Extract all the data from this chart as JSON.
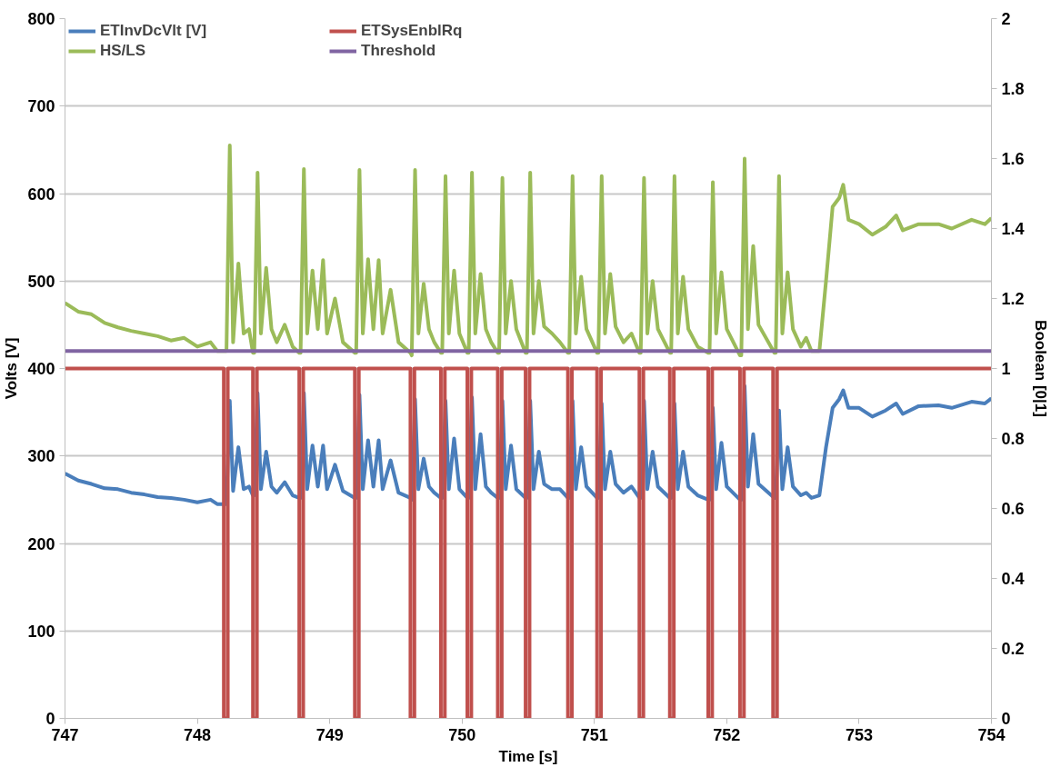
{
  "chart_data": {
    "type": "line",
    "xlabel": "Time [s]",
    "ylabel": "Volts [V]",
    "y2label": "Boolean [0|1]",
    "xlim": [
      747,
      754
    ],
    "xticks": [
      747,
      748,
      749,
      750,
      751,
      752,
      753,
      754
    ],
    "ylim": [
      0,
      800
    ],
    "yticks": [
      0,
      100,
      200,
      300,
      400,
      500,
      600,
      700,
      800
    ],
    "y2lim": [
      0,
      2
    ],
    "y2ticks": [
      0,
      0.2,
      0.4,
      0.6,
      0.8,
      1,
      1.2,
      1.4,
      1.6,
      1.8,
      2
    ],
    "grid": "y",
    "legend": "top left",
    "marker": "none",
    "line_style": "solid",
    "x": [
      747.0,
      747.1,
      747.2,
      747.3,
      747.4,
      747.5,
      747.6,
      747.7,
      747.8,
      747.9,
      748.0,
      748.1,
      748.15,
      748.22,
      748.245,
      748.27,
      748.31,
      748.35,
      748.39,
      748.42,
      748.43,
      748.455,
      748.48,
      748.52,
      748.56,
      748.6,
      748.66,
      748.72,
      748.77,
      748.78,
      748.805,
      748.83,
      748.87,
      748.91,
      748.95,
      748.98,
      749.04,
      749.1,
      749.19,
      749.2,
      749.225,
      749.25,
      749.29,
      749.33,
      749.37,
      749.4,
      749.46,
      749.52,
      749.61,
      749.62,
      749.645,
      749.67,
      749.71,
      749.75,
      749.79,
      749.84,
      749.85,
      749.875,
      749.9,
      749.94,
      749.98,
      750.04,
      750.05,
      750.075,
      750.1,
      750.14,
      750.18,
      750.22,
      750.27,
      750.28,
      750.305,
      750.33,
      750.37,
      750.41,
      750.48,
      750.49,
      750.515,
      750.54,
      750.58,
      750.62,
      750.68,
      750.74,
      750.8,
      750.81,
      750.835,
      750.86,
      750.9,
      750.94,
      751.02,
      751.03,
      751.055,
      751.08,
      751.12,
      751.16,
      751.22,
      751.28,
      751.34,
      751.35,
      751.375,
      751.4,
      751.44,
      751.48,
      751.57,
      751.58,
      751.605,
      751.63,
      751.67,
      751.71,
      751.78,
      751.86,
      751.87,
      751.895,
      751.92,
      751.96,
      752.0,
      752.1,
      752.11,
      752.135,
      752.16,
      752.2,
      752.24,
      752.36,
      752.37,
      752.395,
      752.42,
      752.46,
      752.5,
      752.56,
      752.6,
      752.64,
      752.7,
      752.75,
      752.8,
      752.85,
      752.88,
      752.92,
      753.0,
      753.1,
      753.2,
      753.28,
      753.33,
      753.45,
      753.6,
      753.7,
      753.85,
      753.95,
      754.0
    ],
    "series": [
      {
        "name": "ETInvDcVlt [V]",
        "color": "#4a7ebb",
        "values": [
          280,
          272,
          268,
          263,
          262,
          258,
          256,
          253,
          252,
          250,
          247,
          250,
          245,
          245,
          363,
          260,
          310,
          262,
          265,
          255,
          255,
          372,
          262,
          305,
          265,
          258,
          270,
          255,
          252,
          252,
          372,
          262,
          312,
          265,
          312,
          262,
          290,
          260,
          252,
          252,
          370,
          262,
          318,
          265,
          318,
          262,
          295,
          258,
          252,
          250,
          365,
          262,
          297,
          265,
          258,
          252,
          252,
          363,
          262,
          320,
          262,
          252,
          252,
          367,
          262,
          325,
          265,
          258,
          252,
          252,
          363,
          262,
          312,
          262,
          252,
          252,
          363,
          262,
          305,
          268,
          262,
          262,
          252,
          252,
          363,
          262,
          310,
          265,
          252,
          252,
          360,
          262,
          305,
          268,
          258,
          265,
          252,
          252,
          363,
          262,
          305,
          265,
          252,
          252,
          360,
          262,
          305,
          265,
          255,
          250,
          250,
          355,
          262,
          315,
          265,
          250,
          250,
          380,
          265,
          325,
          268,
          252,
          252,
          352,
          262,
          310,
          265,
          255,
          258,
          252,
          255,
          310,
          355,
          365,
          375,
          355,
          355,
          345,
          352,
          360,
          348,
          357,
          358,
          355,
          362,
          360,
          366
        ]
      },
      {
        "name": "HS/LS",
        "color": "#9bbb59",
        "values": [
          475,
          465,
          462,
          452,
          447,
          443,
          440,
          437,
          432,
          435,
          425,
          430,
          420,
          420,
          655,
          430,
          520,
          440,
          445,
          418,
          418,
          624,
          440,
          515,
          445,
          430,
          450,
          425,
          418,
          418,
          628,
          440,
          512,
          445,
          524,
          440,
          480,
          430,
          418,
          418,
          627,
          440,
          525,
          445,
          524,
          440,
          490,
          430,
          418,
          415,
          627,
          440,
          497,
          445,
          430,
          418,
          418,
          620,
          440,
          512,
          440,
          418,
          418,
          624,
          440,
          508,
          445,
          430,
          418,
          418,
          618,
          440,
          500,
          445,
          418,
          418,
          624,
          440,
          500,
          448,
          440,
          430,
          418,
          418,
          620,
          440,
          505,
          445,
          418,
          418,
          620,
          440,
          508,
          448,
          430,
          440,
          418,
          418,
          618,
          440,
          500,
          445,
          418,
          418,
          620,
          440,
          505,
          445,
          425,
          418,
          418,
          613,
          440,
          510,
          445,
          415,
          415,
          640,
          445,
          540,
          450,
          418,
          418,
          620,
          440,
          510,
          445,
          425,
          435,
          420,
          420,
          500,
          585,
          595,
          610,
          570,
          565,
          553,
          562,
          575,
          558,
          565,
          565,
          560,
          570,
          565,
          572
        ]
      },
      {
        "name": "ETSysEnblRq",
        "color": "#c0504d",
        "axis": "y2",
        "x": [
          747,
          748.2,
          748.2,
          748.23,
          748.23,
          748.42,
          748.42,
          748.45,
          748.45,
          748.77,
          748.77,
          748.8,
          748.8,
          749.19,
          749.19,
          749.22,
          749.22,
          749.61,
          749.61,
          749.64,
          749.64,
          749.84,
          749.84,
          749.87,
          749.87,
          750.04,
          750.04,
          750.07,
          750.07,
          750.27,
          750.27,
          750.3,
          750.3,
          750.48,
          750.48,
          750.51,
          750.51,
          750.8,
          750.8,
          750.83,
          750.83,
          751.02,
          751.02,
          751.05,
          751.05,
          751.34,
          751.34,
          751.37,
          751.37,
          751.57,
          751.57,
          751.6,
          751.6,
          751.86,
          751.86,
          751.89,
          751.89,
          752.1,
          752.1,
          752.13,
          752.13,
          752.35,
          752.35,
          752.38,
          752.38,
          754
        ],
        "values": [
          1,
          1,
          0,
          0,
          1,
          1,
          0,
          0,
          1,
          1,
          0,
          0,
          1,
          1,
          0,
          0,
          1,
          1,
          0,
          0,
          1,
          1,
          0,
          0,
          1,
          1,
          0,
          0,
          1,
          1,
          0,
          0,
          1,
          1,
          0,
          0,
          1,
          1,
          0,
          0,
          1,
          1,
          0,
          0,
          1,
          1,
          0,
          0,
          1,
          1,
          0,
          0,
          1,
          1,
          0,
          0,
          1,
          1,
          0,
          0,
          1,
          1,
          0,
          0,
          1,
          1
        ]
      },
      {
        "name": "Threshold",
        "color": "#8064a2",
        "x": [
          747,
          754
        ],
        "values": [
          420,
          420
        ]
      }
    ]
  }
}
